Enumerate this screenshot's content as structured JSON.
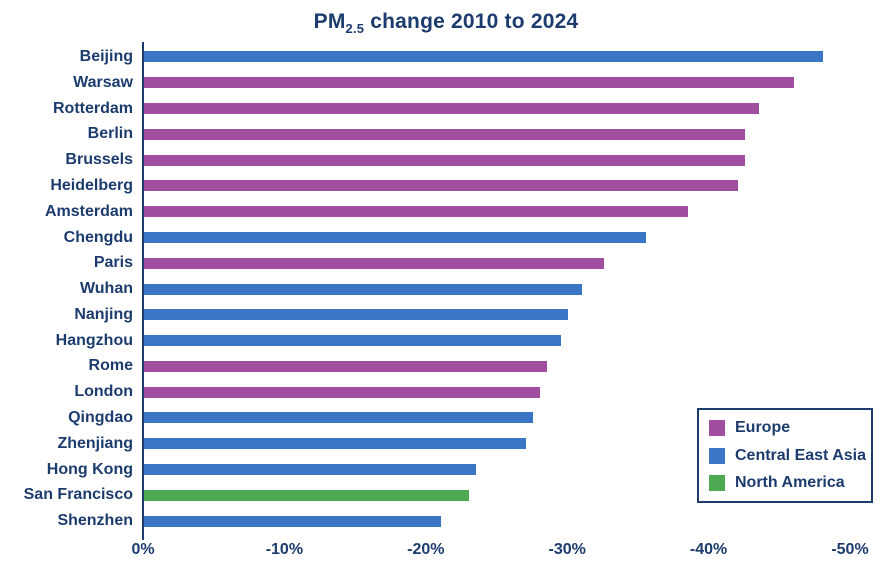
{
  "title": {
    "pm": "PM",
    "subscript": "2.5",
    "rest": " change 2010 to 2024"
  },
  "colors": {
    "navy_text": "#1d3c6e",
    "europe": "#a04fa0",
    "central_east_asia": "#3b76c5",
    "north_america": "#4fa852"
  },
  "chart_data": {
    "type": "bar",
    "orientation": "horizontal",
    "title": "PM2.5 change 2010 to 2024",
    "categories": [
      "Beijing",
      "Warsaw",
      "Rotterdam",
      "Berlin",
      "Brussels",
      "Heidelberg",
      "Amsterdam",
      "Chengdu",
      "Paris",
      "Wuhan",
      "Nanjing",
      "Hangzhou",
      "Rome",
      "London",
      "Qingdao",
      "Zhenjiang",
      "Hong Kong",
      "San Francisco",
      "Shenzhen"
    ],
    "values": [
      -48,
      -46,
      -43.5,
      -42.5,
      -42.5,
      -42,
      -38.5,
      -35.5,
      -32.5,
      -31,
      -30,
      -29.5,
      -28.5,
      -28,
      -27.5,
      -27,
      -23.5,
      -23,
      -21
    ],
    "groups": [
      "Central East Asia",
      "Europe",
      "Europe",
      "Europe",
      "Europe",
      "Europe",
      "Europe",
      "Central East Asia",
      "Europe",
      "Central East Asia",
      "Central East Asia",
      "Central East Asia",
      "Europe",
      "Europe",
      "Central East Asia",
      "Central East Asia",
      "Central East Asia",
      "North America",
      "Central East Asia"
    ],
    "group_colors": {
      "Europe": "#a04fa0",
      "Central East Asia": "#3b76c5",
      "North America": "#4fa852"
    },
    "xlabel": "",
    "ylabel": "",
    "xlim": [
      0,
      -50
    ],
    "xticks": [
      {
        "label": "0%",
        "value": 0
      },
      {
        "label": "-10%",
        "value": -10
      },
      {
        "label": "-20%",
        "value": -20
      },
      {
        "label": "-30%",
        "value": -30
      },
      {
        "label": "-40%",
        "value": -40
      },
      {
        "label": "-50%",
        "value": -50
      }
    ],
    "grid": false,
    "legend_position": "bottom-right",
    "legend": [
      {
        "label": "Europe",
        "color": "#a04fa0"
      },
      {
        "label": "Central East Asia",
        "color": "#3b76c5"
      },
      {
        "label": "North America",
        "color": "#4fa852"
      }
    ]
  }
}
